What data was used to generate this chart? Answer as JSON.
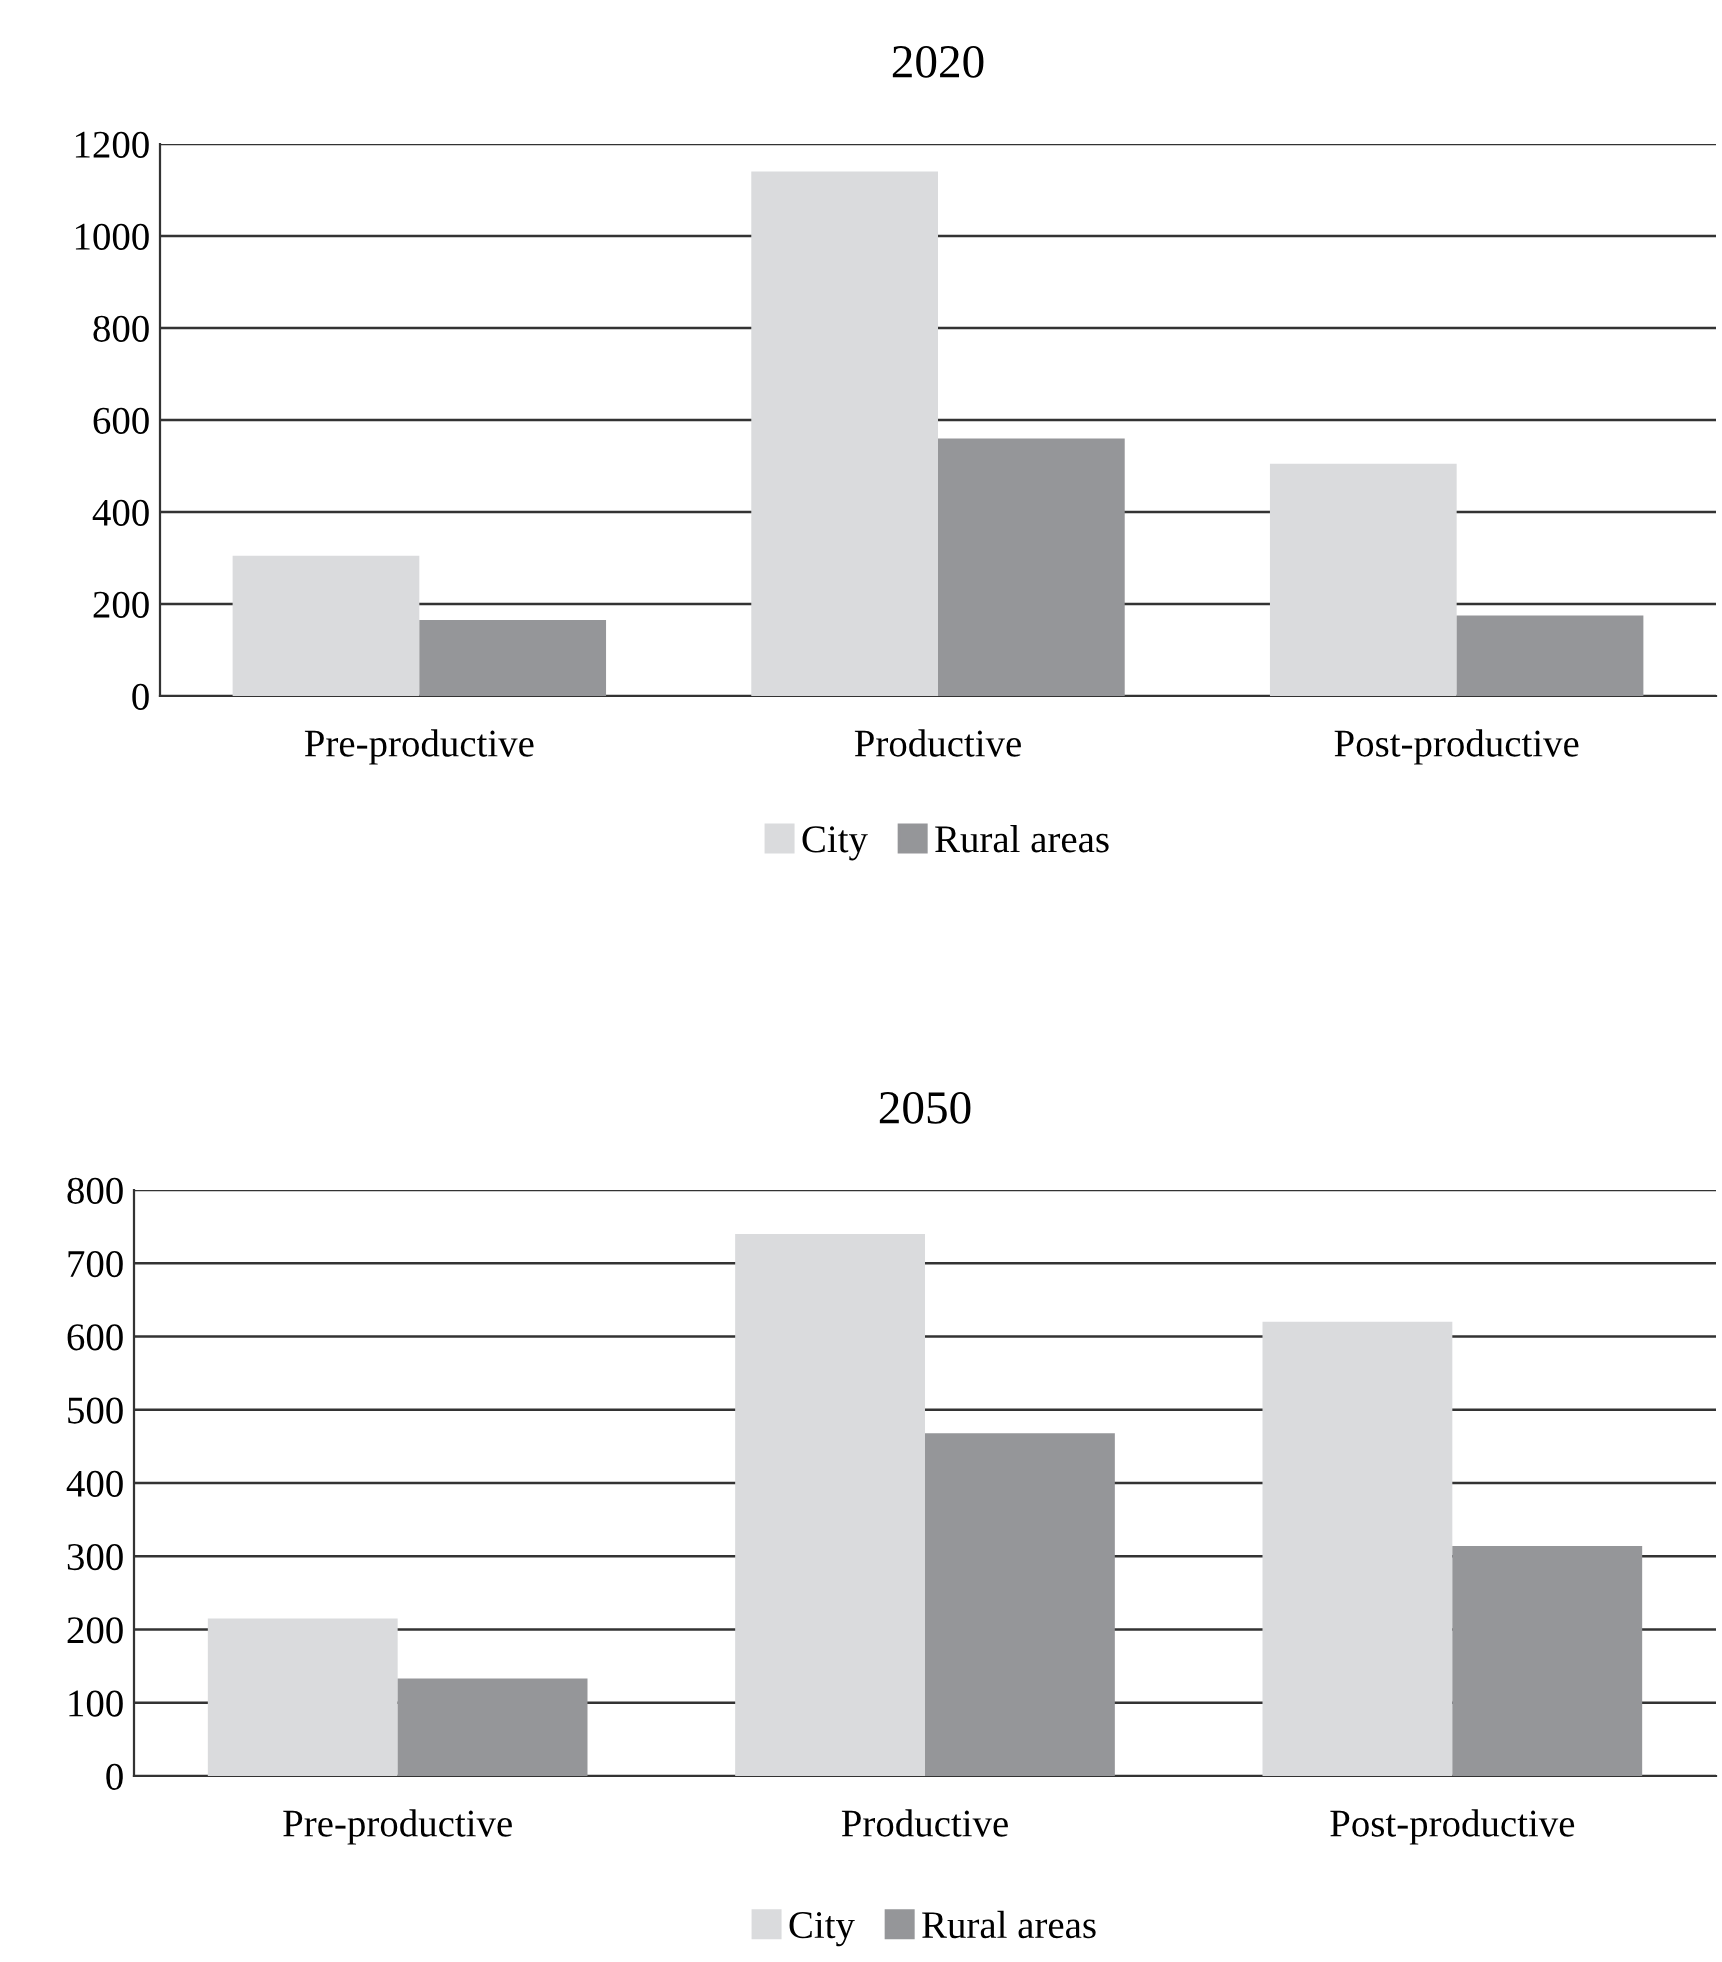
{
  "chart_data": [
    {
      "type": "bar",
      "title": "2020",
      "categories": [
        "Pre-productive",
        "Productive",
        "Post-productive"
      ],
      "series": [
        {
          "name": "City",
          "color": "#dadbdd",
          "values": [
            305,
            1140,
            505
          ]
        },
        {
          "name": "Rural areas",
          "color": "#959699",
          "values": [
            165,
            560,
            175
          ]
        }
      ],
      "ylim": [
        0,
        1200
      ],
      "yticks": [
        0,
        200,
        400,
        600,
        800,
        1000,
        1200
      ],
      "grid": "y",
      "legend": "bottom"
    },
    {
      "type": "bar",
      "title": "2050",
      "categories": [
        "Pre-productive",
        "Productive",
        "Post-productive"
      ],
      "series": [
        {
          "name": "City",
          "color": "#dadbdd",
          "values": [
            215,
            740,
            620
          ]
        },
        {
          "name": "Rural areas",
          "color": "#959699",
          "values": [
            133,
            468,
            314
          ]
        }
      ],
      "ylim": [
        0,
        800
      ],
      "yticks": [
        0,
        100,
        200,
        300,
        400,
        500,
        600,
        700,
        800
      ],
      "grid": "y",
      "legend": "bottom"
    }
  ]
}
